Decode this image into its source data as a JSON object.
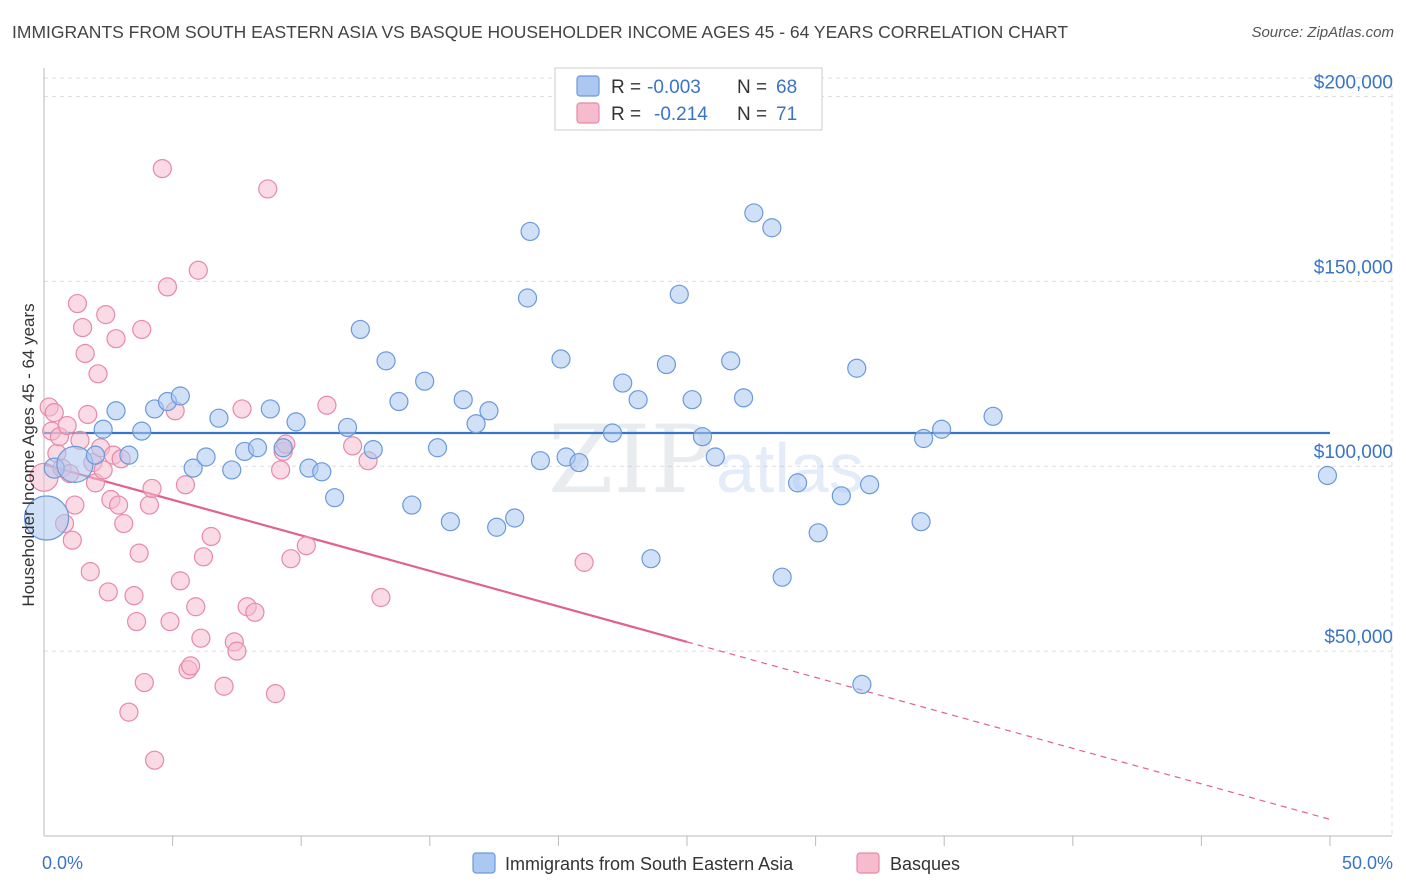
{
  "header": {
    "title": "IMMIGRANTS FROM SOUTH EASTERN ASIA VS BASQUE HOUSEHOLDER INCOME AGES 45 - 64 YEARS CORRELATION CHART",
    "source": "Source: ZipAtlas.com"
  },
  "watermark": {
    "zip": "ZIP",
    "atlas": "atlas"
  },
  "legend_box": {
    "r_label": "R =",
    "n_label": "N =",
    "rows": [
      {
        "r": "-0.003",
        "n": "68"
      },
      {
        "r": "-0.214",
        "n": "71"
      }
    ]
  },
  "colors": {
    "blue": "#3a74c6",
    "blue_fill": "#aac8f0",
    "blue_stroke": "#6b99dc",
    "pink": "#e0628f",
    "pink_fill": "#f6bccd",
    "pink_stroke": "#e889a8",
    "grid": "#dddddd",
    "axis": "#bbbbbb"
  },
  "chart_data": {
    "type": "scatter",
    "title": "IMMIGRANTS FROM SOUTH EASTERN ASIA VS BASQUE HOUSEHOLDER INCOME AGES 45 - 64 YEARS CORRELATION CHART",
    "xlabel": "",
    "ylabel": "Householder Income Ages 45 - 64 years",
    "xlim": [
      0,
      50
    ],
    "ylim": [
      0,
      205000
    ],
    "x_tick_labels": [
      "0.0%",
      "50.0%"
    ],
    "y_ticks": [
      {
        "value": 50000,
        "label": "$50,000"
      },
      {
        "value": 100000,
        "label": "$100,000"
      },
      {
        "value": 150000,
        "label": "$150,000"
      },
      {
        "value": 200000,
        "label": "$200,000"
      }
    ],
    "grid": true,
    "legend_position": "bottom",
    "series": [
      {
        "name": "Immigrants from South Eastern Asia",
        "color": "#3a74c6",
        "r": -0.003,
        "n": 68,
        "trend": {
          "x": [
            0,
            50
          ],
          "y": [
            109000,
            109000
          ]
        },
        "points": [
          [
            0.1,
            86000,
            22
          ],
          [
            0.4,
            99500,
            10
          ],
          [
            1.2,
            100500,
            18
          ],
          [
            2.0,
            103000,
            9
          ],
          [
            2.3,
            110000,
            9
          ],
          [
            2.8,
            115000,
            9
          ],
          [
            3.3,
            103000,
            9
          ],
          [
            3.8,
            109500,
            9
          ],
          [
            4.3,
            115500,
            9
          ],
          [
            4.8,
            117500,
            9
          ],
          [
            5.3,
            119000,
            9
          ],
          [
            5.8,
            99500,
            9
          ],
          [
            6.3,
            102500,
            9
          ],
          [
            6.8,
            113000,
            9
          ],
          [
            7.3,
            99000,
            9
          ],
          [
            7.8,
            104000,
            9
          ],
          [
            8.3,
            105000,
            9
          ],
          [
            8.8,
            115500,
            9
          ],
          [
            9.3,
            105000,
            9
          ],
          [
            9.8,
            112000,
            9
          ],
          [
            10.3,
            99500,
            9
          ],
          [
            10.8,
            98500,
            9
          ],
          [
            11.3,
            91500,
            9
          ],
          [
            11.8,
            110500,
            9
          ],
          [
            12.3,
            137000,
            9
          ],
          [
            12.8,
            104500,
            9
          ],
          [
            13.3,
            128500,
            9
          ],
          [
            13.8,
            117500,
            9
          ],
          [
            14.3,
            89500,
            9
          ],
          [
            14.8,
            123000,
            9
          ],
          [
            15.3,
            105000,
            9
          ],
          [
            15.8,
            85000,
            9
          ],
          [
            16.3,
            118000,
            9
          ],
          [
            16.8,
            111500,
            9
          ],
          [
            17.3,
            115000,
            9
          ],
          [
            17.6,
            83500,
            9
          ],
          [
            18.3,
            86000,
            9
          ],
          [
            18.8,
            145500,
            9
          ],
          [
            18.9,
            163500,
            9
          ],
          [
            19.3,
            101500,
            9
          ],
          [
            20.1,
            129000,
            9
          ],
          [
            20.3,
            102500,
            9
          ],
          [
            20.8,
            101000,
            9
          ],
          [
            22.1,
            109000,
            9
          ],
          [
            22.5,
            122500,
            9
          ],
          [
            23.1,
            118000,
            9
          ],
          [
            23.6,
            75000,
            9
          ],
          [
            24.2,
            127500,
            9
          ],
          [
            24.7,
            146500,
            9
          ],
          [
            25.2,
            118000,
            9
          ],
          [
            25.6,
            108000,
            9
          ],
          [
            26.1,
            102500,
            9
          ],
          [
            26.7,
            128500,
            9
          ],
          [
            27.2,
            118500,
            9
          ],
          [
            27.6,
            168500,
            9
          ],
          [
            28.3,
            164500,
            9
          ],
          [
            28.7,
            70000,
            9
          ],
          [
            29.3,
            95500,
            9
          ],
          [
            30.1,
            82000,
            9
          ],
          [
            31.0,
            92000,
            9
          ],
          [
            31.6,
            126500,
            9
          ],
          [
            32.1,
            95000,
            9
          ],
          [
            31.8,
            41000,
            9
          ],
          [
            34.1,
            85000,
            9
          ],
          [
            34.2,
            107500,
            9
          ],
          [
            34.9,
            110000,
            9
          ],
          [
            36.9,
            113500,
            9
          ],
          [
            49.9,
            97500,
            9
          ]
        ]
      },
      {
        "name": "Basques",
        "color": "#e0628f",
        "r": -0.214,
        "n": 71,
        "trend": {
          "x": [
            0,
            25
          ],
          "y": [
            100500,
            52500
          ]
        },
        "trend_dashed": {
          "x": [
            25,
            50
          ],
          "y": [
            52500,
            4500
          ]
        },
        "points": [
          [
            0.0,
            97000,
            14
          ],
          [
            0.2,
            116000,
            9
          ],
          [
            0.3,
            109500,
            9
          ],
          [
            0.4,
            114500,
            9
          ],
          [
            0.5,
            103500,
            9
          ],
          [
            0.6,
            108000,
            9
          ],
          [
            0.7,
            99500,
            9
          ],
          [
            0.8,
            84500,
            9
          ],
          [
            0.9,
            111000,
            9
          ],
          [
            1.0,
            98000,
            9
          ],
          [
            1.1,
            80000,
            9
          ],
          [
            1.2,
            89500,
            9
          ],
          [
            1.3,
            144000,
            9
          ],
          [
            1.4,
            107000,
            9
          ],
          [
            1.5,
            137500,
            9
          ],
          [
            1.6,
            130500,
            9
          ],
          [
            1.7,
            114000,
            9
          ],
          [
            1.8,
            71500,
            9
          ],
          [
            1.9,
            101000,
            9
          ],
          [
            2.0,
            95500,
            9
          ],
          [
            2.1,
            125000,
            9
          ],
          [
            2.2,
            105000,
            9
          ],
          [
            2.3,
            99000,
            9
          ],
          [
            2.4,
            141000,
            9
          ],
          [
            2.5,
            66000,
            9
          ],
          [
            2.6,
            91000,
            9
          ],
          [
            2.7,
            103000,
            9
          ],
          [
            2.8,
            134500,
            9
          ],
          [
            2.9,
            89500,
            9
          ],
          [
            3.0,
            102000,
            9
          ],
          [
            3.1,
            84500,
            9
          ],
          [
            3.3,
            33500,
            9
          ],
          [
            3.5,
            65000,
            9
          ],
          [
            3.6,
            58000,
            9
          ],
          [
            3.7,
            76500,
            9
          ],
          [
            3.8,
            137000,
            9
          ],
          [
            3.9,
            41500,
            9
          ],
          [
            4.1,
            89500,
            9
          ],
          [
            4.2,
            94000,
            9
          ],
          [
            4.6,
            180500,
            9
          ],
          [
            4.3,
            20500,
            9
          ],
          [
            4.8,
            148500,
            9
          ],
          [
            4.9,
            58000,
            9
          ],
          [
            5.1,
            115000,
            9
          ],
          [
            5.3,
            69000,
            9
          ],
          [
            5.5,
            95000,
            9
          ],
          [
            5.6,
            45000,
            9
          ],
          [
            5.7,
            46000,
            9
          ],
          [
            5.9,
            62000,
            9
          ],
          [
            6.0,
            153000,
            9
          ],
          [
            6.1,
            53500,
            9
          ],
          [
            6.2,
            75500,
            9
          ],
          [
            6.5,
            81000,
            9
          ],
          [
            7.0,
            40500,
            9
          ],
          [
            7.4,
            52500,
            9
          ],
          [
            7.5,
            50000,
            9
          ],
          [
            7.7,
            115500,
            9
          ],
          [
            7.9,
            62000,
            9
          ],
          [
            8.2,
            60500,
            9
          ],
          [
            8.7,
            175000,
            9
          ],
          [
            9.0,
            38500,
            9
          ],
          [
            9.2,
            99000,
            9
          ],
          [
            9.3,
            104000,
            9
          ],
          [
            9.4,
            106000,
            9
          ],
          [
            9.6,
            75000,
            9
          ],
          [
            10.2,
            78500,
            9
          ],
          [
            11.0,
            116500,
            9
          ],
          [
            12.0,
            105500,
            9
          ],
          [
            12.6,
            101500,
            9
          ],
          [
            13.1,
            64500,
            9
          ],
          [
            21.0,
            74000,
            9
          ]
        ]
      }
    ]
  }
}
